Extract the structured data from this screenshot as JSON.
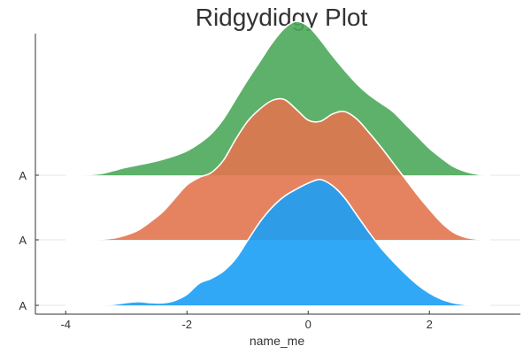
{
  "chart_data": {
    "type": "area",
    "subtype": "ridgeline",
    "title": "Ridgydidgy Plot",
    "xlabel": "name_me",
    "ylabel": "",
    "xlim": [
      -4.5,
      3.5
    ],
    "xticks": [
      -4,
      -2,
      0,
      2
    ],
    "grid": false,
    "legend": "none",
    "x": [
      -4.0,
      -3.8,
      -3.6,
      -3.4,
      -3.2,
      -3.0,
      -2.8,
      -2.6,
      -2.4,
      -2.2,
      -2.0,
      -1.8,
      -1.6,
      -1.4,
      -1.2,
      -1.0,
      -0.8,
      -0.6,
      -0.4,
      -0.2,
      0.0,
      0.2,
      0.4,
      0.6,
      0.8,
      1.0,
      1.2,
      1.4,
      1.6,
      1.8,
      2.0,
      2.2,
      2.4,
      2.6,
      2.8,
      3.0
    ],
    "series": [
      {
        "category": "A",
        "color": "#1a9ff5",
        "values": [
          0.0,
          0.0,
          0.0,
          0.002,
          0.008,
          0.022,
          0.03,
          0.022,
          0.02,
          0.04,
          0.09,
          0.18,
          0.22,
          0.28,
          0.38,
          0.53,
          0.68,
          0.8,
          0.89,
          0.95,
          1.0,
          1.03,
          0.98,
          0.88,
          0.74,
          0.6,
          0.47,
          0.36,
          0.26,
          0.17,
          0.1,
          0.05,
          0.02,
          0.005,
          0.001,
          0.0
        ]
      },
      {
        "category": "A",
        "color": "#e2754f",
        "values": [
          0.0,
          0.0,
          0.001,
          0.005,
          0.015,
          0.04,
          0.08,
          0.15,
          0.23,
          0.34,
          0.45,
          0.51,
          0.55,
          0.65,
          0.82,
          0.97,
          1.07,
          1.14,
          1.15,
          1.07,
          0.98,
          0.97,
          1.03,
          1.05,
          0.99,
          0.88,
          0.76,
          0.63,
          0.5,
          0.37,
          0.25,
          0.14,
          0.06,
          0.02,
          0.005,
          0.0
        ]
      },
      {
        "category": "A",
        "color": "#4da85a",
        "values": [
          0.0,
          0.001,
          0.005,
          0.015,
          0.04,
          0.065,
          0.085,
          0.105,
          0.13,
          0.16,
          0.2,
          0.26,
          0.34,
          0.46,
          0.62,
          0.78,
          0.93,
          1.08,
          1.2,
          1.26,
          1.22,
          1.11,
          0.98,
          0.86,
          0.75,
          0.66,
          0.59,
          0.52,
          0.42,
          0.32,
          0.22,
          0.14,
          0.07,
          0.03,
          0.008,
          0.0
        ]
      }
    ]
  }
}
